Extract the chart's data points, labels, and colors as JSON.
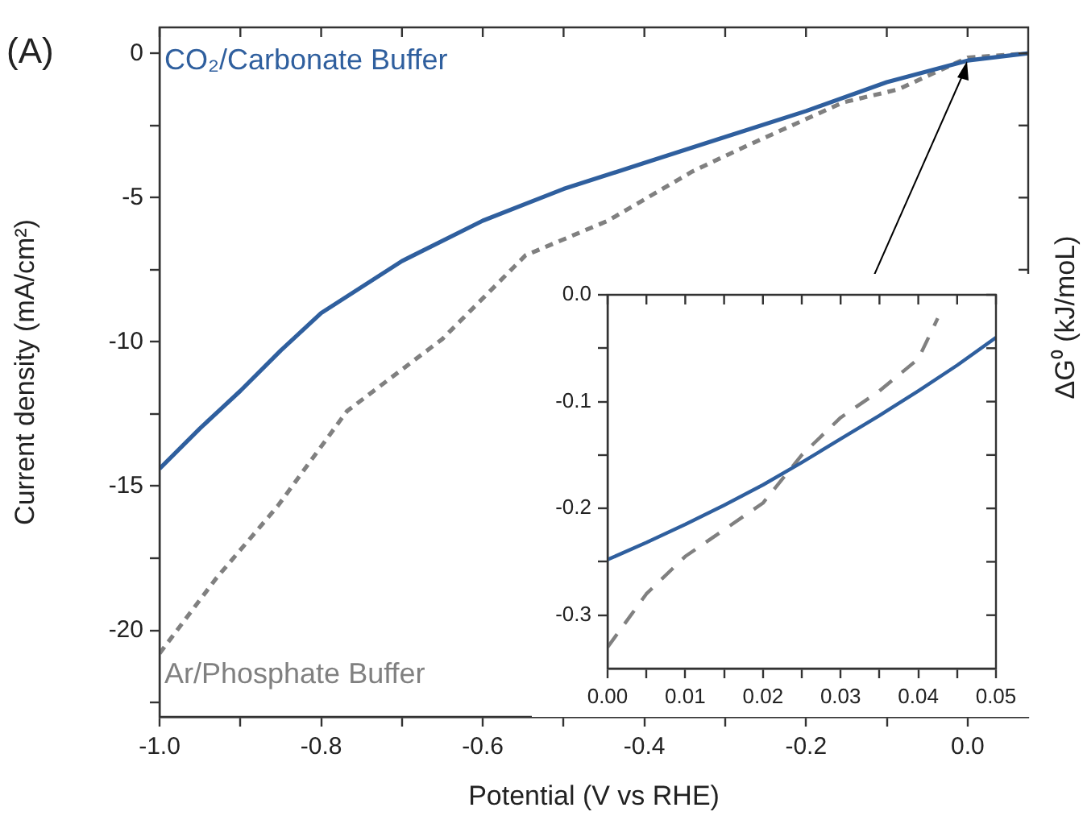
{
  "chart_data": [
    {
      "type": "line",
      "xlabel": "Potential (V vs RHE)",
      "ylabel": "Current density (mA/cm²)",
      "annotations": [
        "(A)",
        "ΔG⁰ (kJ/moL)"
      ],
      "legend": false,
      "marker": "none",
      "grid": false,
      "xlim": [
        -1.0,
        0.075
      ],
      "ylim": [
        -23,
        0.9
      ],
      "xticks": [
        {
          "value": -1.0,
          "label": "-1.0"
        },
        {
          "value": -0.9,
          "label": null
        },
        {
          "value": -0.8,
          "label": "-0.8"
        },
        {
          "value": -0.7,
          "label": null
        },
        {
          "value": -0.6,
          "label": "-0.6"
        },
        {
          "value": -0.5,
          "label": null
        },
        {
          "value": -0.4,
          "label": "-0.4"
        },
        {
          "value": -0.3,
          "label": null
        },
        {
          "value": -0.2,
          "label": "-0.2"
        },
        {
          "value": -0.1,
          "label": null
        },
        {
          "value": 0,
          "label": "0.0"
        }
      ],
      "yticks": [
        0,
        {
          "value": -2.5,
          "label": null
        },
        -5,
        {
          "value": -7.5,
          "label": null
        },
        -10,
        {
          "value": -12.5,
          "label": null
        },
        -15,
        {
          "value": -17.5,
          "label": null
        },
        -20,
        {
          "value": -22.5,
          "label": null
        }
      ],
      "series": [
        {
          "name": "CO₂/Carbonate Buffer",
          "color": "#2f5f9e",
          "line_style": "solid",
          "x": [
            -1.0,
            -0.95,
            -0.9,
            -0.85,
            -0.8,
            -0.7,
            -0.6,
            -0.5,
            -0.4,
            -0.3,
            -0.2,
            -0.1,
            0,
            0.075
          ],
          "values": [
            -14.4,
            -13.0,
            -11.7,
            -10.3,
            -9.0,
            -7.2,
            -5.8,
            -4.7,
            -3.8,
            -2.9,
            -2.0,
            -1.0,
            -0.25,
            0
          ]
        },
        {
          "name": "Ar/Phosphate Buffer",
          "color": "#808080",
          "line_style": "dashed",
          "x": [
            -1.0,
            -0.93,
            -0.854,
            -0.768,
            -0.65,
            -0.547,
            -0.445,
            -0.341,
            -0.273,
            -0.154,
            -0.086,
            0,
            0.075
          ],
          "values": [
            -20.8,
            -18.2,
            -15.7,
            -12.4,
            -9.9,
            -7.0,
            -5.8,
            -4.1,
            -3.2,
            -1.7,
            -1.25,
            -0.15,
            0
          ]
        }
      ]
    },
    {
      "type": "line",
      "legend": false,
      "marker": "none",
      "grid": false,
      "xlim": [
        0,
        0.05
      ],
      "ylim": [
        -0.35,
        0
      ],
      "xticks": [
        {
          "value": 0,
          "label": "0.00"
        },
        {
          "value": 0.005,
          "label": null
        },
        {
          "value": 0.01,
          "label": "0.01"
        },
        {
          "value": 0.015,
          "label": null
        },
        {
          "value": 0.02,
          "label": "0.02"
        },
        {
          "value": 0.025,
          "label": null
        },
        {
          "value": 0.03,
          "label": "0.03"
        },
        {
          "value": 0.035,
          "label": null
        },
        {
          "value": 0.04,
          "label": "0.04"
        },
        {
          "value": 0.045,
          "label": null
        },
        {
          "value": 0.05,
          "label": "0.05"
        }
      ],
      "yticks": [
        {
          "value": 0,
          "label": "0.0"
        },
        {
          "value": -0.05,
          "label": null
        },
        {
          "value": -0.1,
          "label": "-0.1"
        },
        {
          "value": -0.15,
          "label": null
        },
        {
          "value": -0.2,
          "label": "-0.2"
        },
        {
          "value": -0.25,
          "label": null
        },
        {
          "value": -0.3,
          "label": "-0.3"
        }
      ],
      "series": [
        {
          "color": "#2f5f9e",
          "line_style": "solid",
          "x": [
            0,
            0.005,
            0.01,
            0.015,
            0.02,
            0.025,
            0.03,
            0.035,
            0.04,
            0.045,
            0.05
          ],
          "values": [
            -0.248,
            -0.232,
            -0.215,
            -0.197,
            -0.178,
            -0.157,
            -0.135,
            -0.113,
            -0.09,
            -0.066,
            -0.04
          ]
        },
        {
          "color": "#808080",
          "line_style": "dashed",
          "x": [
            0,
            0.005,
            0.01,
            0.015,
            0.02,
            0.025,
            0.03,
            0.035,
            0.04,
            0.0425
          ],
          "values": [
            -0.33,
            -0.28,
            -0.245,
            -0.22,
            -0.195,
            -0.15,
            -0.115,
            -0.09,
            -0.06,
            -0.022
          ]
        }
      ]
    }
  ]
}
